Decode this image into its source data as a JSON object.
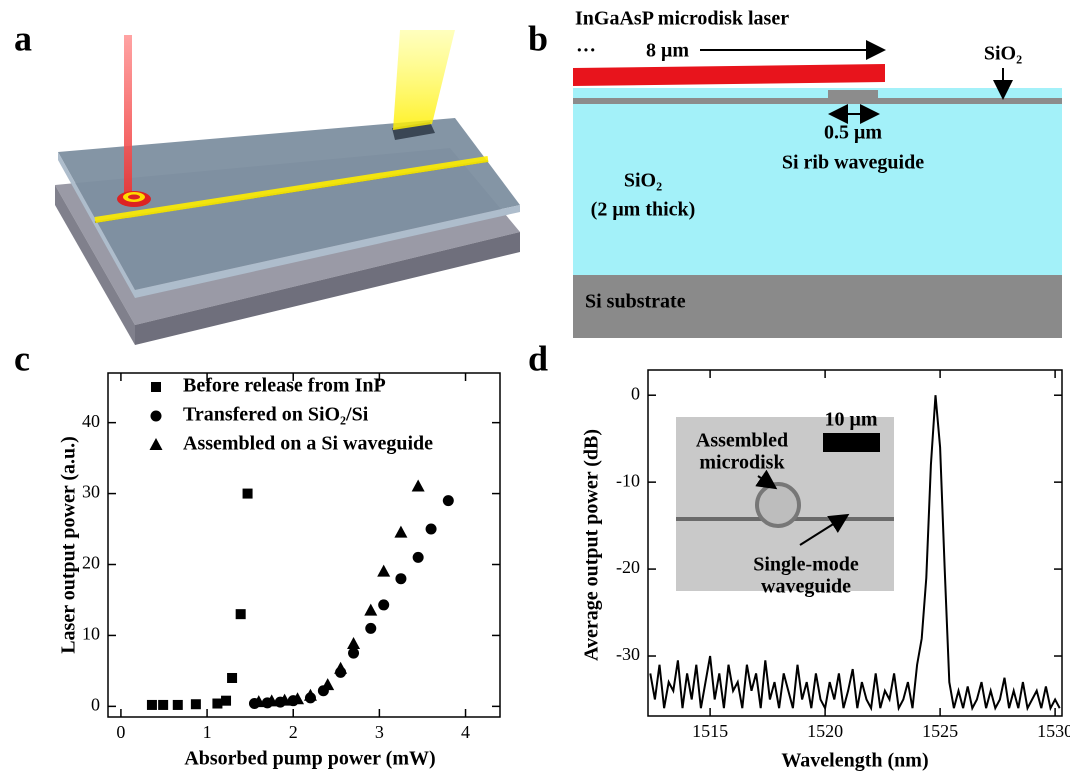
{
  "panel_labels": [
    "a",
    "b",
    "c",
    "d"
  ],
  "diagram_b": {
    "title": "InGaAsP microdisk laser",
    "ellipsis": "···",
    "disk_width": "8 μm",
    "cladding_label": "SiO₂",
    "rib_width": "0.5 μm",
    "rib_label": "Si rib waveguide",
    "box_label": [
      "SiO₂",
      "(2 μm thick)"
    ],
    "substrate_label": "Si substrate"
  },
  "chart_data": [
    {
      "type": "scatter",
      "x_label": "Absorbed pump power (mW)",
      "y_label": "Laser output power (a.u.)",
      "xlim": [
        -0.15,
        4.4
      ],
      "ylim": [
        -1.5,
        47
      ],
      "xticks": [
        0,
        1,
        2,
        3,
        4
      ],
      "yticks": [
        0,
        10,
        20,
        30,
        40
      ],
      "legend": "upper left",
      "series": [
        {
          "name": "Before release from InP",
          "color": "#000000",
          "marker": "square",
          "x": [
            0.36,
            0.49,
            0.66,
            0.87,
            1.12,
            1.22,
            1.29,
            1.39,
            1.47
          ],
          "values": [
            0.2,
            0.2,
            0.2,
            0.3,
            0.4,
            0.8,
            4.0,
            13.0,
            30.0
          ]
        },
        {
          "name": "Transfered on SiO₂/Si",
          "color": "#000000",
          "marker": "circle",
          "x": [
            1.55,
            1.7,
            1.85,
            2.0,
            2.2,
            2.35,
            2.55,
            2.7,
            2.9,
            3.05,
            3.25,
            3.45,
            3.6,
            3.8
          ],
          "values": [
            0.4,
            0.5,
            0.6,
            0.8,
            1.2,
            2.2,
            4.8,
            7.5,
            11.0,
            14.3,
            18.0,
            21.0,
            25.0,
            29.0
          ]
        },
        {
          "name": "Assembled on a Si waveguide",
          "color": "#000000",
          "marker": "triangle",
          "x": [
            1.6,
            1.75,
            1.9,
            2.05,
            2.2,
            2.4,
            2.55,
            2.7,
            2.9,
            3.05,
            3.25,
            3.45
          ],
          "values": [
            0.6,
            0.7,
            0.8,
            1.0,
            1.5,
            3.0,
            5.3,
            8.8,
            13.5,
            19.0,
            24.5,
            31.0
          ]
        }
      ]
    },
    {
      "type": "line",
      "x_label": "Wavelength (nm)",
      "y_label": "Average output power (dB)",
      "xlim": [
        1512.3,
        1530.3
      ],
      "ylim": [
        -36.9,
        2.9
      ],
      "xticks": [
        1515,
        1520,
        1525,
        1530
      ],
      "yticks": [
        0,
        -10,
        -20,
        -30
      ],
      "annotations": [
        "Assembled",
        "microdisk",
        "10 μm",
        "Single-mode",
        "waveguide"
      ],
      "x": [
        1512.4,
        1512.6,
        1512.8,
        1513.0,
        1513.2,
        1513.4,
        1513.6,
        1513.8,
        1514.0,
        1514.2,
        1514.4,
        1514.6,
        1514.8,
        1515.0,
        1515.2,
        1515.4,
        1515.6,
        1515.8,
        1516.0,
        1516.2,
        1516.4,
        1516.6,
        1516.8,
        1517.0,
        1517.2,
        1517.4,
        1517.6,
        1517.8,
        1518.0,
        1518.2,
        1518.4,
        1518.6,
        1518.8,
        1519.0,
        1519.2,
        1519.4,
        1519.6,
        1519.8,
        1520.0,
        1520.2,
        1520.4,
        1520.6,
        1520.8,
        1521.0,
        1521.2,
        1521.4,
        1521.6,
        1521.8,
        1522.0,
        1522.2,
        1522.4,
        1522.6,
        1522.8,
        1523.0,
        1523.2,
        1523.4,
        1523.6,
        1523.8,
        1524.0,
        1524.2,
        1524.4,
        1524.6,
        1524.8,
        1525.0,
        1525.2,
        1525.4,
        1525.6,
        1525.8,
        1526.0,
        1526.2,
        1526.4,
        1526.6,
        1526.8,
        1527.0,
        1527.2,
        1527.4,
        1527.6,
        1527.8,
        1528.0,
        1528.2,
        1528.4,
        1528.6,
        1528.8,
        1529.0,
        1529.2,
        1529.4,
        1529.6,
        1529.8,
        1530.0,
        1530.2
      ],
      "series": [
        {
          "color": "#000000",
          "values": [
            -32,
            -35,
            -31,
            -36,
            -33,
            -34,
            -30.5,
            -36,
            -32,
            -35,
            -31,
            -36,
            -33,
            -30,
            -35,
            -32,
            -36,
            -31,
            -34,
            -33,
            -36,
            -31,
            -34,
            -32,
            -36,
            -30.5,
            -35,
            -33,
            -36,
            -32,
            -34,
            -36,
            -31,
            -35,
            -33,
            -36,
            -32,
            -35,
            -36,
            -33,
            -35,
            -32,
            -36,
            -34,
            -31.5,
            -36,
            -33,
            -35,
            -36,
            -32,
            -36,
            -34,
            -35,
            -32,
            -36,
            -35,
            -33,
            -36,
            -31,
            -28,
            -21,
            -8,
            0,
            -6,
            -20,
            -33,
            -36,
            -34,
            -36,
            -33.5,
            -36,
            -35,
            -33,
            -36,
            -34,
            -36,
            -35,
            -32.5,
            -36,
            -34,
            -36,
            -33,
            -36,
            -35,
            -34,
            -36,
            -33.5,
            -36,
            -35,
            -36
          ]
        }
      ]
    }
  ]
}
